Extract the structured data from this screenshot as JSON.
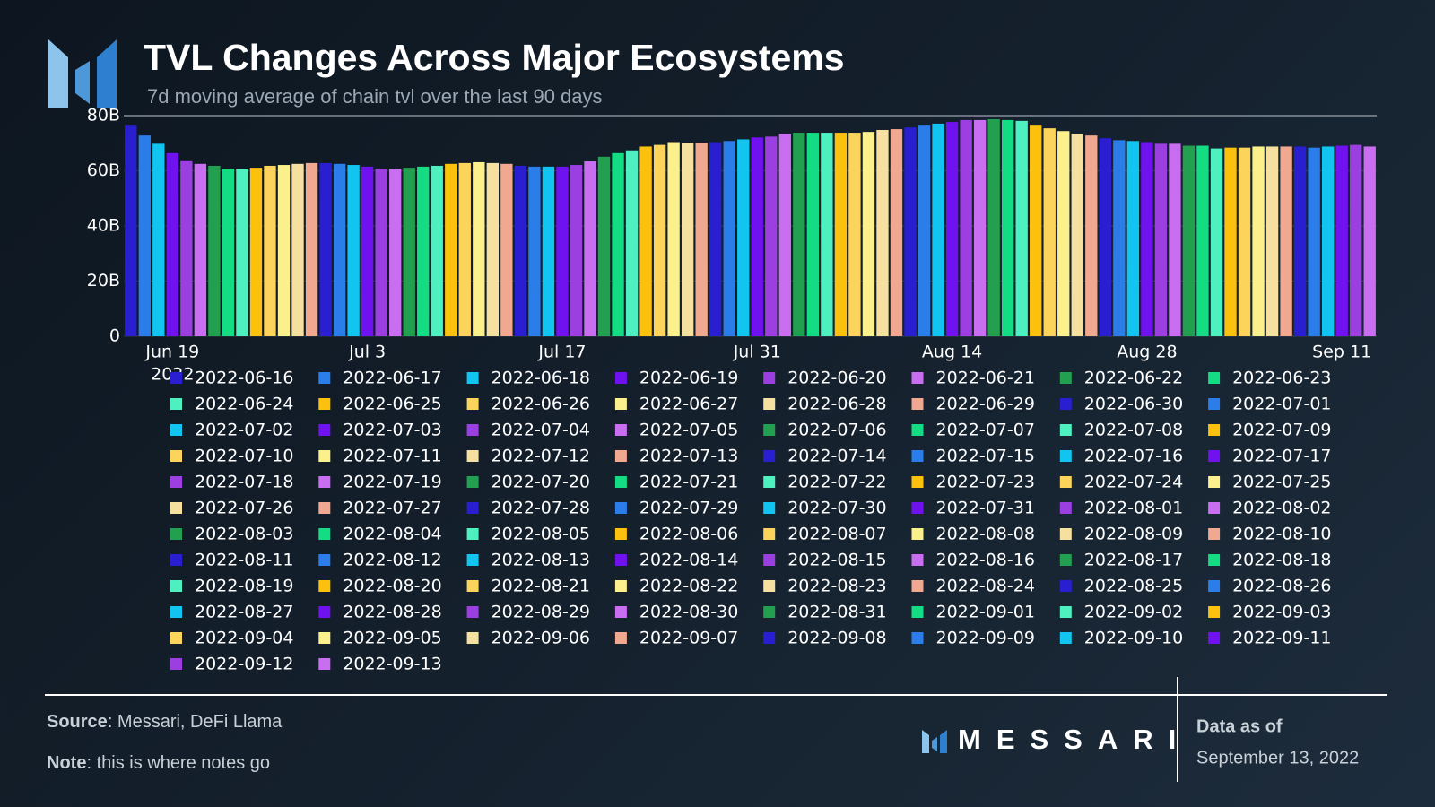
{
  "chart_data": {
    "type": "bar",
    "title": "TVL Changes Across Major Ecosystems",
    "subtitle": "7d moving average of chain tvl over the last 90 days",
    "categories": [
      "2022-06-16",
      "2022-06-17",
      "2022-06-18",
      "2022-06-19",
      "2022-06-20",
      "2022-06-21",
      "2022-06-22",
      "2022-06-23",
      "2022-06-24",
      "2022-06-25",
      "2022-06-26",
      "2022-06-27",
      "2022-06-28",
      "2022-06-29",
      "2022-06-30",
      "2022-07-01",
      "2022-07-02",
      "2022-07-03",
      "2022-07-04",
      "2022-07-05",
      "2022-07-06",
      "2022-07-07",
      "2022-07-08",
      "2022-07-09",
      "2022-07-10",
      "2022-07-11",
      "2022-07-12",
      "2022-07-13",
      "2022-07-14",
      "2022-07-15",
      "2022-07-16",
      "2022-07-17",
      "2022-07-18",
      "2022-07-19",
      "2022-07-20",
      "2022-07-21",
      "2022-07-22",
      "2022-07-23",
      "2022-07-24",
      "2022-07-25",
      "2022-07-26",
      "2022-07-27",
      "2022-07-28",
      "2022-07-29",
      "2022-07-30",
      "2022-07-31",
      "2022-08-01",
      "2022-08-02",
      "2022-08-03",
      "2022-08-04",
      "2022-08-05",
      "2022-08-06",
      "2022-08-07",
      "2022-08-08",
      "2022-08-09",
      "2022-08-10",
      "2022-08-11",
      "2022-08-12",
      "2022-08-13",
      "2022-08-14",
      "2022-08-15",
      "2022-08-16",
      "2022-08-17",
      "2022-08-18",
      "2022-08-19",
      "2022-08-20",
      "2022-08-21",
      "2022-08-22",
      "2022-08-23",
      "2022-08-24",
      "2022-08-25",
      "2022-08-26",
      "2022-08-27",
      "2022-08-28",
      "2022-08-29",
      "2022-08-30",
      "2022-08-31",
      "2022-09-01",
      "2022-09-02",
      "2022-09-03",
      "2022-09-04",
      "2022-09-05",
      "2022-09-06",
      "2022-09-07",
      "2022-09-08",
      "2022-09-09",
      "2022-09-10",
      "2022-09-11",
      "2022-09-12",
      "2022-09-13"
    ],
    "values": [
      76.7,
      72.8,
      69.8,
      66.4,
      63.8,
      62.5,
      61.8,
      60.8,
      60.8,
      61.1,
      61.8,
      62.1,
      62.5,
      62.8,
      62.8,
      62.5,
      62.1,
      61.5,
      60.8,
      60.8,
      61.1,
      61.5,
      61.8,
      62.5,
      62.8,
      63.1,
      62.8,
      62.5,
      61.8,
      61.5,
      61.5,
      61.5,
      62.1,
      63.5,
      65.1,
      66.4,
      67.4,
      68.8,
      69.4,
      70.4,
      70.1,
      70.1,
      70.4,
      70.8,
      71.4,
      72.1,
      72.4,
      73.4,
      73.8,
      73.8,
      73.8,
      73.8,
      73.8,
      74.1,
      74.8,
      75.1,
      75.7,
      76.7,
      77.1,
      77.7,
      78.4,
      78.4,
      78.7,
      78.4,
      78.1,
      76.7,
      75.4,
      74.4,
      73.4,
      72.8,
      71.8,
      71.1,
      70.8,
      70.4,
      69.8,
      69.8,
      69.1,
      69.1,
      68.1,
      68.4,
      68.4,
      68.8,
      68.8,
      68.8,
      68.8,
      68.4,
      68.8,
      69.1,
      69.4,
      68.8
    ],
    "colors": [
      "#2a1fd0",
      "#2b7de9",
      "#11c5f0",
      "#7011f0",
      "#9b3fe0",
      "#c96ef0",
      "#22a050",
      "#14dc82",
      "#4ef0c0",
      "#fcc10c",
      "#fcd45c",
      "#fcf08c",
      "#f5e0a0",
      "#f0a890"
    ],
    "ylim": [
      0,
      80
    ],
    "yticks": [
      0,
      {
        "value": 20,
        "label": "20B"
      },
      {
        "value": 40,
        "label": "40B"
      },
      {
        "value": 60,
        "label": "60B"
      },
      {
        "value": 80,
        "label": "80B"
      }
    ],
    "xticks": [
      {
        "value": "2022-06-19",
        "label": "Jun 19",
        "sublabel": "2022"
      },
      {
        "value": "2022-07-03",
        "label": "Jul 3"
      },
      {
        "value": "2022-07-17",
        "label": "Jul 17"
      },
      {
        "value": "2022-07-31",
        "label": "Jul 31"
      },
      {
        "value": "2022-08-14",
        "label": "Aug 14"
      },
      {
        "value": "2022-08-28",
        "label": "Aug 28"
      },
      {
        "value": "2022-09-11",
        "label": "Sep 11"
      }
    ],
    "grid": true
  },
  "footer": {
    "source_label": "Source",
    "source": ": Messari, DeFi Llama",
    "note_label": "Note",
    "note": ": this is where notes go",
    "brand": "MESSARI",
    "as_of_label": "Data as of",
    "as_of": "September 13, 2022"
  }
}
